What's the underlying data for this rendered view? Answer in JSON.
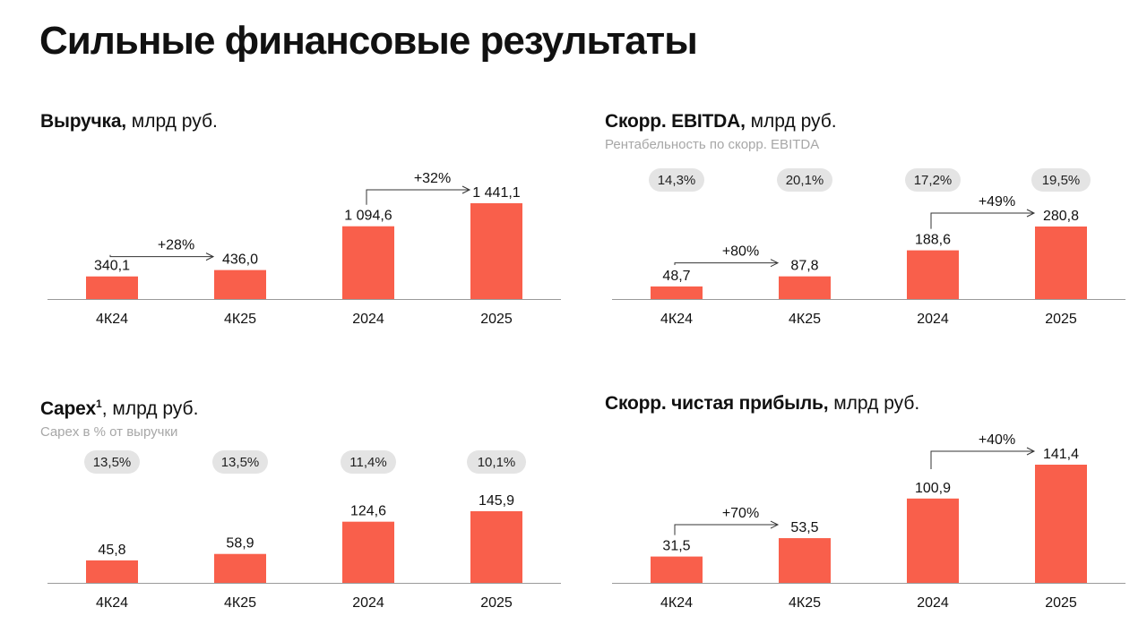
{
  "page": {
    "title": "Сильные финансовые результаты"
  },
  "colors": {
    "bar": "#f95f4b",
    "pill": "#e4e4e4",
    "axis": "#9a9a9a",
    "arrow": "#333333"
  },
  "chart_data": [
    {
      "id": "revenue",
      "type": "bar",
      "title_bold": "Выручка,",
      "title_sup": "",
      "title_unit": " млрд руб.",
      "subtitle": "",
      "categories": [
        "4К24",
        "4К25",
        "2024",
        "2025"
      ],
      "values": [
        340.1,
        436.0,
        1094.6,
        1441.1
      ],
      "value_labels": [
        "340,1",
        "436,0",
        "1 094,6",
        "1 441,1"
      ],
      "ylim": [
        0,
        1441.1
      ],
      "pills": [],
      "growth": [
        {
          "from": 0,
          "to": 1,
          "label": "+28%"
        },
        {
          "from": 2,
          "to": 3,
          "label": "+32%"
        }
      ]
    },
    {
      "id": "ebitda",
      "type": "bar",
      "title_bold": "Скорр. EBITDA,",
      "title_sup": "",
      "title_unit": " млрд руб.",
      "subtitle": "Рентабельность по скорр. EBITDA",
      "categories": [
        "4К24",
        "4К25",
        "2024",
        "2025"
      ],
      "values": [
        48.7,
        87.8,
        188.6,
        280.8
      ],
      "value_labels": [
        "48,7",
        "87,8",
        "188,6",
        "280,8"
      ],
      "ylim": [
        0,
        280.8
      ],
      "pills": [
        "14,3%",
        "20,1%",
        "17,2%",
        "19,5%"
      ],
      "growth": [
        {
          "from": 0,
          "to": 1,
          "label": "+80%"
        },
        {
          "from": 2,
          "to": 3,
          "label": "+49%"
        }
      ]
    },
    {
      "id": "capex",
      "type": "bar",
      "title_bold": "Capex",
      "title_sup": "1",
      "title_unit": ", млрд руб.",
      "subtitle": "Capex в % от выручки",
      "categories": [
        "4К24",
        "4К25",
        "2024",
        "2025"
      ],
      "values": [
        45.8,
        58.9,
        124.6,
        145.9
      ],
      "value_labels": [
        "45,8",
        "58,9",
        "124,6",
        "145,9"
      ],
      "ylim": [
        0,
        145.9
      ],
      "pills": [
        "13,5%",
        "13,5%",
        "11,4%",
        "10,1%"
      ],
      "growth": []
    },
    {
      "id": "net_income",
      "type": "bar",
      "title_bold": "Скорр. чистая прибыль,",
      "title_sup": "",
      "title_unit": " млрд руб.",
      "subtitle": "",
      "categories": [
        "4К24",
        "4К25",
        "2024",
        "2025"
      ],
      "values": [
        31.5,
        53.5,
        100.9,
        141.4
      ],
      "value_labels": [
        "31,5",
        "53,5",
        "100,9",
        "141,4"
      ],
      "ylim": [
        0,
        141.4
      ],
      "pills": [],
      "growth": [
        {
          "from": 0,
          "to": 1,
          "label": "+70%"
        },
        {
          "from": 2,
          "to": 3,
          "label": "+40%"
        }
      ]
    }
  ]
}
